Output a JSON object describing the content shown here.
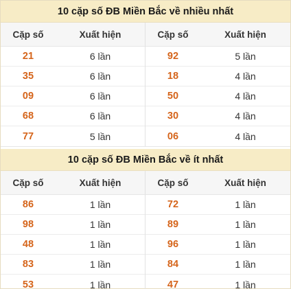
{
  "most": {
    "title": "10 cặp số ĐB Miền Bắc về nhiều nhất",
    "header": {
      "num": "Cặp số",
      "count": "Xuất hiện"
    },
    "left": [
      {
        "num": "21",
        "count": "6 lần"
      },
      {
        "num": "35",
        "count": "6 lần"
      },
      {
        "num": "09",
        "count": "6 lần"
      },
      {
        "num": "68",
        "count": "6 lần"
      },
      {
        "num": "77",
        "count": "5 lần"
      }
    ],
    "right": [
      {
        "num": "92",
        "count": "5 lần"
      },
      {
        "num": "18",
        "count": "4 lần"
      },
      {
        "num": "50",
        "count": "4 lần"
      },
      {
        "num": "30",
        "count": "4 lần"
      },
      {
        "num": "06",
        "count": "4 lần"
      }
    ]
  },
  "least": {
    "title": "10 cặp số ĐB Miền Bắc về ít nhất",
    "header": {
      "num": "Cặp số",
      "count": "Xuất hiện"
    },
    "left": [
      {
        "num": "86",
        "count": "1 lần"
      },
      {
        "num": "98",
        "count": "1 lần"
      },
      {
        "num": "48",
        "count": "1 lần"
      },
      {
        "num": "83",
        "count": "1 lần"
      },
      {
        "num": "53",
        "count": "1 lần"
      }
    ],
    "right": [
      {
        "num": "72",
        "count": "1 lần"
      },
      {
        "num": "89",
        "count": "1 lần"
      },
      {
        "num": "96",
        "count": "1 lần"
      },
      {
        "num": "84",
        "count": "1 lần"
      },
      {
        "num": "47",
        "count": "1 lần"
      }
    ]
  }
}
